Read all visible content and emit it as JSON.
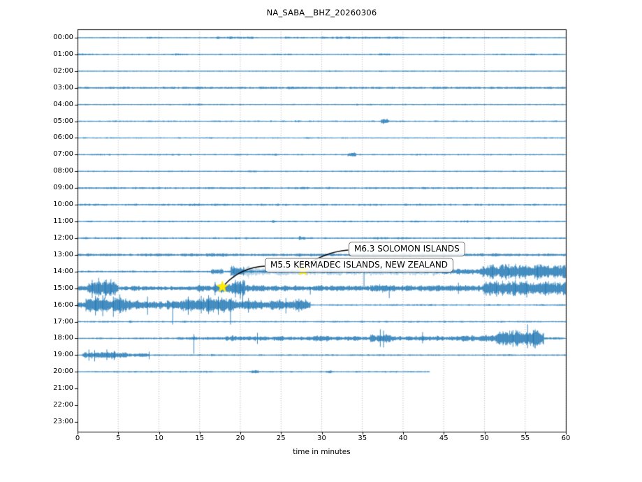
{
  "chart_data": {
    "type": "helicorder-seismogram",
    "title": "NA_SABA__BHZ_20260306",
    "xlabel": "time in minutes",
    "xlim": [
      0,
      60
    ],
    "x_ticks": [
      0,
      5,
      10,
      15,
      20,
      25,
      30,
      35,
      40,
      45,
      50,
      55,
      60
    ],
    "row_labels": [
      "00:00",
      "01:00",
      "02:00",
      "03:00",
      "04:00",
      "05:00",
      "06:00",
      "07:00",
      "08:00",
      "09:00",
      "10:00",
      "11:00",
      "12:00",
      "13:00",
      "14:00",
      "15:00",
      "16:00",
      "17:00",
      "18:00",
      "19:00",
      "20:00",
      "21:00",
      "22:00",
      "23:00"
    ],
    "grid": "vertical-dotted",
    "legend": "none",
    "colors": {
      "trace": "#1f77b4",
      "highlight": "#a8cbe2",
      "star": "#ffeb00",
      "grid": "#9a9a9a",
      "axis": "#000000",
      "annotation_border": "#6a6a6a"
    },
    "events": [
      {
        "label": "M6.3 SOLOMON ISLANDS",
        "row": "14:00",
        "minute": 27.7
      },
      {
        "label": "M5.5 KERMADEC ISLANDS, NEW ZEALAND",
        "row": "15:00",
        "minute": 17.8
      }
    ],
    "data_end": {
      "row": "20:00",
      "minute": 43.3
    },
    "rows": [
      {
        "hour": "00:00",
        "segments": [
          [
            0,
            60,
            0.8
          ],
          [
            8.5,
            10,
            1.3
          ],
          [
            17,
            22,
            1.4
          ],
          [
            25.5,
            28,
            1.2
          ],
          [
            30,
            40,
            1.35
          ],
          [
            44,
            46,
            1.1
          ]
        ]
      },
      {
        "hour": "01:00",
        "segments": [
          [
            0,
            60,
            0.8
          ],
          [
            0,
            2,
            1.1
          ],
          [
            12,
            13.5,
            1.3
          ],
          [
            24,
            26,
            1.0
          ],
          [
            37,
            38.5,
            1.2
          ],
          [
            52,
            59,
            1.0
          ]
        ]
      },
      {
        "hour": "02:00",
        "segments": [
          [
            0,
            60,
            0.75
          ]
        ]
      },
      {
        "hour": "03:00",
        "segments": [
          [
            0,
            60,
            1.25
          ],
          [
            25.8,
            27,
            1.7
          ],
          [
            40,
            42,
            1.4
          ]
        ]
      },
      {
        "hour": "04:00",
        "segments": [
          [
            0,
            60,
            0.75
          ],
          [
            34,
            35,
            1.1
          ]
        ]
      },
      {
        "hour": "05:00",
        "segments": [
          [
            0,
            60,
            0.8
          ],
          [
            26.7,
            27.4,
            1.5
          ],
          [
            37.3,
            38.3,
            2.6
          ]
        ]
      },
      {
        "hour": "06:00",
        "segments": [
          [
            0,
            60,
            0.75
          ]
        ]
      },
      {
        "hour": "07:00",
        "segments": [
          [
            0,
            60,
            0.8
          ],
          [
            23.9,
            24.5,
            1.3
          ],
          [
            33.2,
            34.2,
            2.4
          ]
        ]
      },
      {
        "hour": "08:00",
        "segments": [
          [
            0,
            60,
            0.75
          ],
          [
            21,
            22,
            1.1
          ]
        ]
      },
      {
        "hour": "09:00",
        "segments": [
          [
            0,
            60,
            1.15
          ]
        ]
      },
      {
        "hour": "10:00",
        "segments": [
          [
            0,
            60,
            1.15
          ],
          [
            14,
            15,
            1.5
          ]
        ]
      },
      {
        "hour": "11:00",
        "segments": [
          [
            0,
            60,
            0.9
          ],
          [
            23.8,
            24.4,
            1.5
          ],
          [
            41,
            42,
            1.6
          ],
          [
            47,
            48,
            1.3
          ]
        ]
      },
      {
        "hour": "12:00",
        "segments": [
          [
            0,
            60,
            1.05
          ],
          [
            27.2,
            28,
            2.0
          ],
          [
            36,
            40,
            1.3
          ]
        ]
      },
      {
        "hour": "13:00",
        "segments": [
          [
            0,
            60,
            1.5
          ],
          [
            13,
            14.2,
            2.2
          ],
          [
            15.8,
            18.2,
            2.3
          ],
          [
            19,
            19.6,
            2.0
          ],
          [
            26,
            28,
            1.8
          ],
          [
            42,
            52,
            1.8
          ]
        ]
      },
      {
        "hour": "14:00",
        "segments": [
          [
            0,
            60,
            1.15
          ],
          [
            13.5,
            14.2,
            1.8
          ],
          [
            16.4,
            17.9,
            3.5
          ],
          [
            18.8,
            20.5,
            6
          ],
          [
            20.5,
            44.5,
            4.5,
            "l"
          ],
          [
            20.8,
            22.5,
            7,
            "l"
          ],
          [
            44.5,
            49.8,
            3.5
          ],
          [
            49.8,
            60,
            8.5
          ]
        ],
        "extra": [
          [
            20.5,
            44.5,
            1.8
          ]
        ],
        "spikes": [
          {
            "t": 19.2,
            "u": 8,
            "d": 9
          },
          {
            "t": 35.2,
            "u": 2,
            "d": 24
          },
          {
            "t": 51,
            "u": 10,
            "d": 11
          },
          {
            "t": 53,
            "u": 11,
            "d": 10
          },
          {
            "t": 56.5,
            "u": 10,
            "d": 12
          }
        ]
      },
      {
        "hour": "15:00",
        "segments": [
          [
            0,
            60,
            3
          ],
          [
            1.2,
            5,
            9
          ],
          [
            5,
            6.8,
            2.6
          ],
          [
            6.8,
            7.6,
            3.6
          ],
          [
            7.6,
            14.5,
            2.6
          ],
          [
            14.5,
            16.5,
            4.2
          ],
          [
            16.5,
            18.8,
            5.5
          ],
          [
            18.8,
            20.6,
            8.5
          ],
          [
            20.6,
            23,
            4
          ],
          [
            23,
            36,
            3.3
          ],
          [
            36,
            38.5,
            4.6
          ],
          [
            38.5,
            44.5,
            3.8
          ],
          [
            44.5,
            49.8,
            3.6
          ],
          [
            49.8,
            60,
            8.8
          ]
        ],
        "spikes": [
          {
            "t": 1.8,
            "u": 12,
            "d": 14
          },
          {
            "t": 2.6,
            "u": 15,
            "d": 12
          },
          {
            "t": 3.4,
            "u": 12,
            "d": 15
          },
          {
            "t": 4.1,
            "u": 13,
            "d": 11
          },
          {
            "t": 16.9,
            "u": 9,
            "d": 10
          },
          {
            "t": 19.4,
            "u": 12,
            "d": 13
          },
          {
            "t": 20.0,
            "u": 10,
            "d": 15
          },
          {
            "t": 20.3,
            "u": 2,
            "d": 26
          },
          {
            "t": 28.6,
            "u": 2,
            "d": 9
          },
          {
            "t": 38.3,
            "u": 2,
            "d": 14
          },
          {
            "t": 46.8,
            "u": 8,
            "d": 8
          },
          {
            "t": 51.5,
            "u": 11,
            "d": 12
          },
          {
            "t": 53.8,
            "u": 12,
            "d": 11
          },
          {
            "t": 55.2,
            "u": 11,
            "d": 13
          },
          {
            "t": 57.5,
            "u": 10,
            "d": 11
          }
        ]
      },
      {
        "hour": "16:00",
        "segments": [
          [
            0,
            60,
            0.9
          ],
          [
            0,
            1,
            4
          ],
          [
            1,
            6.5,
            8.5
          ],
          [
            6.5,
            11,
            5
          ],
          [
            11,
            12.5,
            6.5
          ],
          [
            12.5,
            19.5,
            8.5
          ],
          [
            19.5,
            24,
            5.5
          ],
          [
            24,
            28.6,
            6.5
          ]
        ],
        "spikes": [
          {
            "t": 2.2,
            "u": 13,
            "d": 15
          },
          {
            "t": 3.1,
            "u": 14,
            "d": 16
          },
          {
            "t": 4.4,
            "u": 12,
            "d": 17
          },
          {
            "t": 5.2,
            "u": 15,
            "d": 12
          },
          {
            "t": 8.6,
            "u": 12,
            "d": 14
          },
          {
            "t": 11.7,
            "u": 5,
            "d": 28
          },
          {
            "t": 13.6,
            "u": 12,
            "d": 14
          },
          {
            "t": 15.2,
            "u": 13,
            "d": 12
          },
          {
            "t": 16.1,
            "u": 14,
            "d": 13
          },
          {
            "t": 17.3,
            "u": 12,
            "d": 14
          },
          {
            "t": 18.8,
            "u": 8,
            "d": 28
          },
          {
            "t": 21,
            "u": 10,
            "d": 11
          },
          {
            "t": 25.6,
            "u": 10,
            "d": 12
          },
          {
            "t": 27.2,
            "u": 9,
            "d": 10
          }
        ]
      },
      {
        "hour": "17:00",
        "segments": [
          [
            0,
            60,
            0.85
          ],
          [
            3,
            3.5,
            1.2
          ],
          [
            6.3,
            6.8,
            1.4
          ],
          [
            13,
            13.6,
            1.2
          ],
          [
            31,
            32,
            1.0
          ]
        ]
      },
      {
        "hour": "18:00",
        "segments": [
          [
            0,
            60,
            0.95
          ],
          [
            12.2,
            17.7,
            1.8
          ],
          [
            17.7,
            20.3,
            2.8
          ],
          [
            20.3,
            29,
            2.6
          ],
          [
            29,
            31,
            3.6
          ],
          [
            31,
            36,
            2.8
          ],
          [
            36,
            38.5,
            5
          ],
          [
            38.5,
            42,
            2.8
          ],
          [
            42,
            47,
            3.2
          ],
          [
            47,
            50,
            3.8
          ],
          [
            50,
            51.5,
            5
          ],
          [
            51.5,
            57.3,
            9
          ],
          [
            57.3,
            60,
            1.6
          ]
        ],
        "spikes": [
          {
            "t": 14.3,
            "u": 6,
            "d": 22
          },
          {
            "t": 22.1,
            "u": 8,
            "d": 8
          },
          {
            "t": 37.2,
            "u": 13,
            "d": 12
          },
          {
            "t": 37.6,
            "u": 11,
            "d": 13
          },
          {
            "t": 42.4,
            "u": 9,
            "d": 7
          },
          {
            "t": 53.5,
            "u": 12,
            "d": 12
          },
          {
            "t": 55.3,
            "u": 20,
            "d": 14
          },
          {
            "t": 56,
            "u": 12,
            "d": 12
          }
        ]
      },
      {
        "hour": "19:00",
        "segments": [
          [
            0,
            60,
            0.9
          ],
          [
            0.6,
            6.2,
            4.2
          ],
          [
            6.2,
            8.9,
            2.2
          ],
          [
            16.4,
            16.9,
            1.4
          ],
          [
            36.8,
            37.3,
            1.3
          ]
        ],
        "spikes": [
          {
            "t": 1.4,
            "u": 8,
            "d": 8
          },
          {
            "t": 2.1,
            "u": 7,
            "d": 9
          },
          {
            "t": 3.6,
            "u": 8,
            "d": 7
          },
          {
            "t": 4.5,
            "u": 6,
            "d": 7
          },
          {
            "t": 8.8,
            "u": 5,
            "d": 6
          }
        ]
      },
      {
        "hour": "20:00",
        "end": 43.3,
        "segments": [
          [
            0,
            43.3,
            0.85
          ],
          [
            15.5,
            16,
            1.4
          ],
          [
            21.4,
            22.2,
            1.9
          ],
          [
            30.5,
            31.2,
            1.7
          ]
        ]
      },
      {
        "hour": "21:00",
        "segments": []
      },
      {
        "hour": "22:00",
        "segments": []
      },
      {
        "hour": "23:00",
        "segments": []
      }
    ]
  }
}
